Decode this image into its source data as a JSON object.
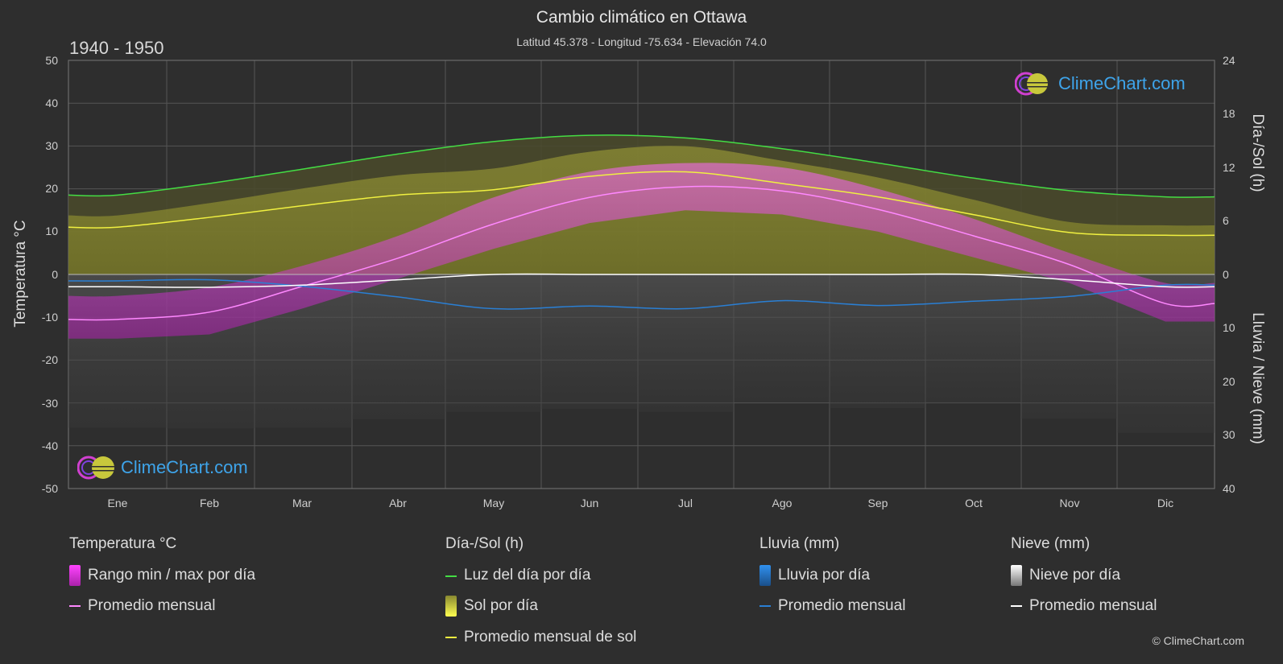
{
  "header": {
    "title": "Cambio climático en Ottawa",
    "subtitle": "Latitud 45.378 - Longitud -75.634 - Elevación 74.0",
    "period": "1940 - 1950"
  },
  "axes": {
    "left_title": "Temperatura °C",
    "right_top_title": "Día-/Sol (h)",
    "right_bottom_title": "Lluvia / Nieve (mm)",
    "left_ticks": [
      "50",
      "40",
      "30",
      "20",
      "10",
      "0",
      "-10",
      "-20",
      "-30",
      "-40",
      "-50"
    ],
    "right_top_ticks": [
      "24",
      "18",
      "12",
      "6",
      "0"
    ],
    "right_bottom_ticks": [
      "10",
      "20",
      "30",
      "40"
    ],
    "months": [
      "Ene",
      "Feb",
      "Mar",
      "Abr",
      "May",
      "Jun",
      "Jul",
      "Ago",
      "Sep",
      "Oct",
      "Nov",
      "Dic"
    ]
  },
  "legend": {
    "temp_title": "Temperatura °C",
    "temp_range": "Rango min / max por día",
    "temp_avg": "Promedio mensual",
    "sun_title": "Día-/Sol (h)",
    "daylight": "Luz del día por día",
    "sun_per_day": "Sol por día",
    "sun_avg": "Promedio mensual de sol",
    "rain_title": "Lluvia (mm)",
    "rain_per_day": "Lluvia por día",
    "rain_avg": "Promedio mensual",
    "snow_title": "Nieve (mm)",
    "snow_per_day": "Nieve por día",
    "snow_avg": "Promedio mensual"
  },
  "branding": {
    "logo_text": "ClimeChart.com",
    "copyright": "© ClimeChart.com"
  },
  "colors": {
    "background": "#2e2e2e",
    "temp_range": "#e040e0",
    "temp_avg": "#ff88ff",
    "daylight": "#44dd44",
    "sunshine": "#c8c83c",
    "sun_avg": "#f0f040",
    "rain": "#2a7fd4",
    "snow": "#ffffff",
    "logo": "#3ea4ea"
  },
  "chart_data": {
    "type": "area",
    "x": [
      "Ene",
      "Feb",
      "Mar",
      "Abr",
      "May",
      "Jun",
      "Jul",
      "Ago",
      "Sep",
      "Oct",
      "Nov",
      "Dic"
    ],
    "ylim_temperature": [
      -50,
      50
    ],
    "ylim_daylight_hours": [
      0,
      24
    ],
    "ylim_precip_mm": [
      0,
      40
    ],
    "series": [
      {
        "name": "Promedio mensual",
        "unit": "°C",
        "values": [
          -10.5,
          -8.8,
          -2.8,
          3.8,
          11.8,
          18.0,
          20.5,
          19.5,
          15.2,
          9.0,
          2.3,
          -6.8
        ]
      },
      {
        "name": "Luz del día por día",
        "unit": "h",
        "values": [
          8.9,
          10.2,
          11.8,
          13.5,
          14.9,
          15.6,
          15.3,
          14.1,
          12.5,
          10.8,
          9.4,
          8.7
        ]
      },
      {
        "name": "Promedio mensual de sol",
        "unit": "h",
        "values": [
          5.3,
          6.4,
          7.7,
          8.9,
          9.5,
          11.0,
          11.5,
          10.2,
          8.7,
          6.7,
          4.7,
          4.4
        ]
      },
      {
        "name": "Lluvia promedio mensual",
        "unit": "mm",
        "values": [
          1.2,
          1.0,
          2.2,
          4.2,
          6.4,
          5.9,
          6.4,
          4.9,
          5.8,
          5.0,
          4.1,
          2.0
        ]
      },
      {
        "name": "Nieve promedio mensual",
        "unit": "mm",
        "values": [
          2.3,
          2.4,
          2.0,
          1.0,
          0.0,
          0.0,
          0.0,
          0.0,
          0.0,
          0.0,
          1.0,
          2.3
        ]
      }
    ],
    "temp_range_daily": {
      "min": [
        -15,
        -14,
        -8,
        -1,
        6,
        12,
        15,
        14,
        10,
        4,
        -2,
        -11
      ],
      "max": [
        -5,
        -3,
        2,
        9,
        18,
        24,
        26,
        25,
        20,
        13,
        5,
        -2
      ]
    },
    "grid": true
  }
}
